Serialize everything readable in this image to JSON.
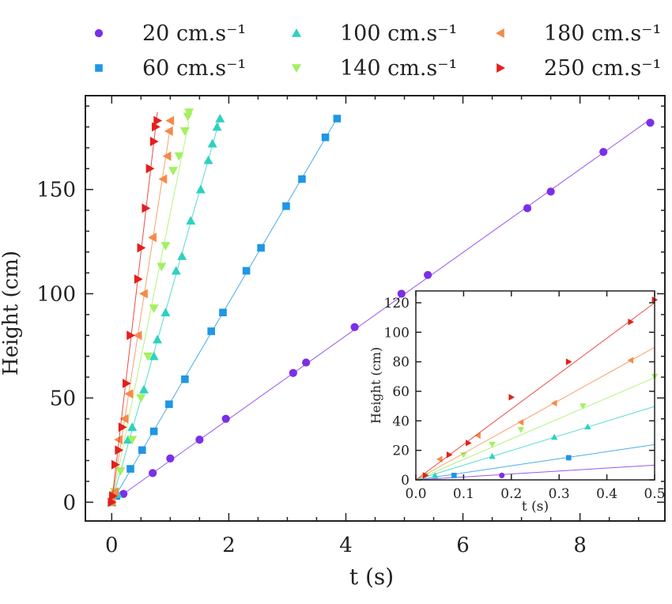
{
  "chart_data": {
    "type": "scatter",
    "xlabel": "t (s)",
    "ylabel": "Height (cm)",
    "xlim": [
      -0.45,
      9.45
    ],
    "ylim": [
      -9,
      195
    ],
    "xticks": [
      0,
      2,
      4,
      6,
      8
    ],
    "yticks": [
      0,
      50,
      100,
      150
    ],
    "legend_position": "top",
    "series": [
      {
        "name": "20 cm.s⁻¹",
        "color": "#7b2fe8",
        "marker": "circle",
        "x": [
          0,
          0.2,
          0.7,
          1.0,
          1.5,
          1.95,
          3.1,
          3.32,
          4.15,
          4.95,
          5.4,
          7.1,
          7.5,
          8.4,
          9.2
        ],
        "y": [
          0,
          4,
          14,
          21,
          30,
          40,
          62,
          67,
          84,
          100,
          109,
          141,
          149,
          168,
          182
        ]
      },
      {
        "name": "60 cm.s⁻¹",
        "color": "#1f96e6",
        "marker": "square",
        "x": [
          0,
          0.08,
          0.32,
          0.52,
          0.72,
          0.98,
          1.25,
          1.7,
          1.9,
          2.3,
          2.55,
          2.98,
          3.25,
          3.65,
          3.85
        ],
        "y": [
          0,
          3,
          16,
          25,
          34,
          47,
          59,
          82,
          91,
          111,
          122,
          142,
          155,
          175,
          184
        ]
      },
      {
        "name": "100 cm.s⁻¹",
        "color": "#2ed1c0",
        "marker": "triangle-up",
        "x": [
          0,
          0.1,
          0.28,
          0.35,
          0.55,
          0.72,
          0.78,
          0.92,
          1.1,
          1.2,
          1.35,
          1.52,
          1.65,
          1.72,
          1.8,
          1.85
        ],
        "y": [
          0,
          4,
          30,
          36,
          54,
          70,
          78,
          91,
          111,
          118,
          135,
          150,
          164,
          172,
          180,
          184
        ]
      },
      {
        "name": "140 cm.s⁻¹",
        "color": "#a3f060",
        "marker": "triangle-down",
        "x": [
          0,
          0.05,
          0.15,
          0.35,
          0.5,
          0.62,
          0.72,
          0.85,
          0.92,
          1.05,
          1.15,
          1.25,
          1.3,
          1.32
        ],
        "y": [
          0,
          5,
          15,
          30,
          50,
          70,
          93,
          113,
          123,
          159,
          166,
          178,
          185,
          187
        ]
      },
      {
        "name": "180 cm.s⁻¹",
        "color": "#f58a4a",
        "marker": "triangle-left",
        "x": [
          0,
          0.05,
          0.12,
          0.22,
          0.3,
          0.45,
          0.55,
          0.7,
          0.88,
          0.95,
          0.98,
          1.0
        ],
        "y": [
          0,
          5,
          30,
          40,
          52,
          80,
          100,
          127,
          155,
          166,
          178,
          183
        ]
      },
      {
        "name": "250 cm.s⁻¹",
        "color": "#e3201c",
        "marker": "triangle-right",
        "x": [
          0,
          0.02,
          0.06,
          0.12,
          0.18,
          0.25,
          0.32,
          0.45,
          0.5,
          0.58,
          0.65,
          0.72,
          0.75,
          0.78
        ],
        "y": [
          0,
          3,
          18,
          25,
          36,
          57,
          80,
          107,
          122,
          141,
          160,
          173,
          180,
          183
        ]
      }
    ],
    "inset": {
      "xlabel": "t (s)",
      "ylabel": "Height (cm)",
      "xlim": [
        0,
        0.5
      ],
      "ylim": [
        0,
        128
      ],
      "xticks": [
        "0.0",
        "0.1",
        "0.2",
        "0.3",
        "0.4",
        "0.5"
      ],
      "yticks": [
        0,
        20,
        40,
        60,
        80,
        100,
        120
      ],
      "series_points": [
        {
          "x": [
            0.18
          ],
          "y": [
            3
          ]
        },
        {
          "x": [
            0.08,
            0.32
          ],
          "y": [
            3,
            15
          ]
        },
        {
          "x": [
            0.04,
            0.16,
            0.29,
            0.36
          ],
          "y": [
            3,
            16,
            29,
            36
          ]
        },
        {
          "x": [
            0.02,
            0.1,
            0.16,
            0.22,
            0.35,
            0.5
          ],
          "y": [
            3,
            17,
            24,
            34,
            50,
            70
          ]
        },
        {
          "x": [
            0.05,
            0.13,
            0.22,
            0.29,
            0.45
          ],
          "y": [
            14,
            30,
            39,
            52,
            81
          ]
        },
        {
          "x": [
            0.02,
            0.07,
            0.11,
            0.2,
            0.32,
            0.45,
            0.5
          ],
          "y": [
            3,
            17,
            25,
            56,
            80,
            107,
            122
          ]
        }
      ]
    }
  }
}
